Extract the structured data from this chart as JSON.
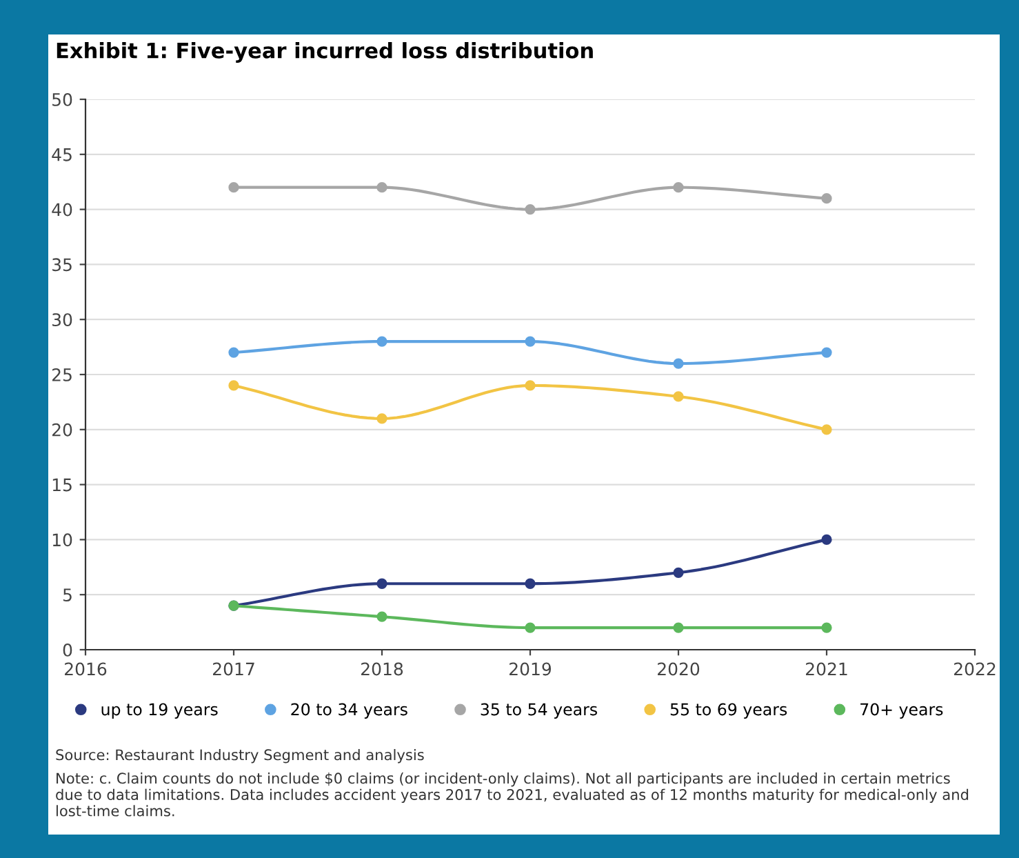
{
  "chart_data": {
    "type": "line",
    "title": "Exhibit 1: Five-year incurred loss distribution",
    "x": [
      2017,
      2018,
      2019,
      2020,
      2021
    ],
    "series": [
      {
        "name": "up to 19 years",
        "color": "#2b3a80",
        "values": [
          4,
          6,
          6,
          7,
          10
        ]
      },
      {
        "name": "20 to 34 years",
        "color": "#5ea3e2",
        "values": [
          27,
          28,
          28,
          26,
          27
        ]
      },
      {
        "name": "35 to 54 years",
        "color": "#a6a6a6",
        "values": [
          42,
          42,
          40,
          42,
          41
        ]
      },
      {
        "name": "55 to 69 years",
        "color": "#f2c444",
        "values": [
          24,
          21,
          24,
          23,
          20
        ]
      },
      {
        "name": "70+ years",
        "color": "#5cb85c",
        "values": [
          4,
          3,
          2,
          2,
          2
        ]
      }
    ],
    "xlim": [
      2016,
      2022
    ],
    "xticks": [
      2016,
      2017,
      2018,
      2019,
      2020,
      2021,
      2022
    ],
    "ylim": [
      0,
      50
    ],
    "yticks": [
      0,
      5,
      10,
      15,
      20,
      25,
      30,
      35,
      40,
      45,
      50
    ],
    "grid": "y",
    "legend": "bottom",
    "marker": "circle",
    "line_style": "solid",
    "annotations": [
      "Source: Restaurant Industry Segment and analysis",
      "Note: c. Claim counts do not include $0 claims (or incident-only claims). Not all participants are included in certain metrics due to data limitations. Data includes accident years 2017 to 2021, evaluated as of 12 months maturity for medical-only and lost-time claims."
    ]
  }
}
